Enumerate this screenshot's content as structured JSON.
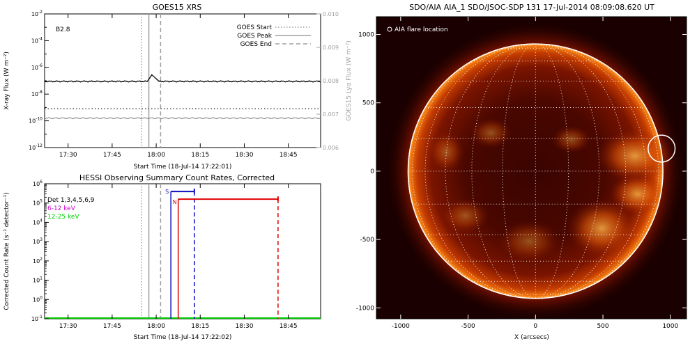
{
  "panels": {
    "goes": {
      "title": "GOES15 XRS",
      "class_label": "B2.8",
      "ylabel_left": "X-ray Flux (W m⁻²)",
      "ylabel_right": "GOES15 Lyα Flux (W m⁻²)",
      "xlabel": "Start Time (18-Jul-14 17:22:01)",
      "legend": [
        "GOES Start",
        "GOES Peak",
        "GOES End"
      ]
    },
    "hessi": {
      "title": "HESSI Observing Summary Count Rates, Corrected",
      "ylabel": "Corrected Count Rate (s⁻¹ detector⁻¹)",
      "xlabel": "Start Time (18-Jul-14 17:22:02)",
      "legend": [
        "Det 1,3,4,5,6,9",
        "6-12 keV",
        "12-25 keV"
      ],
      "legend_colors": [
        "#000000",
        "#cc00cc",
        "#00cc00"
      ],
      "marker_s": "S",
      "marker_n": "N"
    },
    "aia": {
      "title": "SDO/AIA AIA_1 SDO/JSOC-SDP 131 17-Jul-2014 08:09:08.620 UT",
      "legend": "AIA flare location",
      "xlabel": "X (arcsecs)"
    }
  },
  "chart_data": [
    {
      "type": "line",
      "title": "GOES15 XRS",
      "xlabel": "Start Time (18-Jul-14 17:22:01)",
      "ylabel": "X-ray Flux (W m⁻²)",
      "ylabel_right": "GOES15 Lyα Flux (W m⁻²)",
      "x_ticks": [
        "17:30",
        "17:45",
        "18:00",
        "18:15",
        "18:30",
        "18:45"
      ],
      "x_tick_minutes": [
        30,
        45,
        60,
        75,
        90,
        105
      ],
      "xlim_minutes": [
        22,
        116
      ],
      "ylim_log10": [
        -12,
        -2
      ],
      "y_tick_exponents": [
        -2,
        -4,
        -6,
        -8,
        -10,
        -12
      ],
      "y_right_ticks": [
        "0.010",
        "0.009",
        "0.008",
        "0.007",
        "0.006"
      ],
      "y_right_lim": [
        0.006,
        0.01
      ],
      "annotation": "B2.8",
      "series": [
        {
          "name": "",
          "color": "#000000",
          "log10_base": -7.05,
          "bump": {
            "start": 57,
            "peak": 58.5,
            "end": 61,
            "log10_peak": -6.55
          }
        },
        {
          "name": "",
          "color": "#808080",
          "log10_base": -9.8
        }
      ],
      "dotted_level_log10": -9.1,
      "vlines": [
        {
          "label": "GOES Start",
          "minute": 55,
          "style": "dotted",
          "color": "#a0a0a0"
        },
        {
          "label": "GOES Peak",
          "minute": 57.5,
          "style": "solid",
          "color": "#a0a0a0"
        },
        {
          "label": "GOES End",
          "minute": 61.5,
          "style": "dashed",
          "color": "#a0a0a0"
        }
      ]
    },
    {
      "type": "line",
      "title": "HESSI Observing Summary Count Rates, Corrected",
      "xlabel": "Start Time (18-Jul-14 17:22:02)",
      "ylabel": "Corrected Count Rate (s⁻¹ detector⁻¹)",
      "x_ticks": [
        "17:30",
        "17:45",
        "18:00",
        "18:15",
        "18:30",
        "18:45"
      ],
      "x_tick_minutes": [
        30,
        45,
        60,
        75,
        90,
        105
      ],
      "xlim_minutes": [
        22,
        116
      ],
      "ylim_log10": [
        -1,
        6
      ],
      "y_tick_exponents": [
        6,
        5,
        4,
        3,
        2,
        1,
        0,
        -1
      ],
      "series": [
        {
          "name": "12-25 keV",
          "color": "#00cc00",
          "log10": -1
        }
      ],
      "vlines": [
        {
          "minute": 55,
          "style": "dotted",
          "color": "#a0a0a0"
        },
        {
          "minute": 57.5,
          "style": "solid",
          "color": "#a0a0a0"
        },
        {
          "minute": 61.5,
          "style": "dashed",
          "color": "#a0a0a0"
        }
      ],
      "intervals": [
        {
          "label": "S",
          "color": "#1010c0",
          "start": 65,
          "end": 73,
          "log10_level": 5.6
        },
        {
          "label": "N",
          "color": "#e00000",
          "start": 67.5,
          "end": 101.5,
          "log10_level": 5.2
        }
      ]
    },
    {
      "type": "image",
      "title": "SDO/AIA AIA_1 SDO/JSOC-SDP 131 17-Jul-2014 08:09:08.620 UT",
      "xlabel": "X (arcsecs)",
      "x_ticks": [
        -1000,
        -500,
        0,
        500,
        1000
      ],
      "y_ticks": [
        1000,
        500,
        0,
        -500,
        -1000
      ],
      "xlim": [
        -1180,
        1120
      ],
      "ylim": [
        -1080,
        1130
      ],
      "solar_radius_arcsec": 945,
      "grid_spacing_deg": 15,
      "flare_location": {
        "x": 935,
        "y": 165,
        "radius": 100,
        "label": "AIA flare location"
      }
    }
  ]
}
